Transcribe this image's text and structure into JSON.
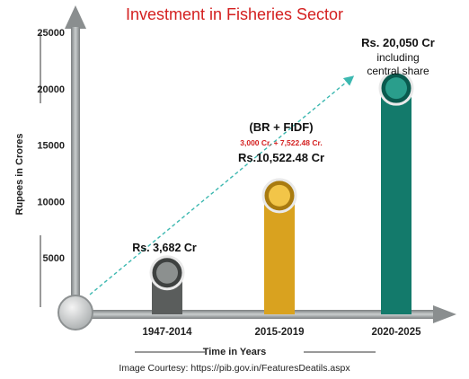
{
  "chart_data": {
    "type": "bar",
    "title": "Investment in Fisheries Sector",
    "ylabel": "Rupees in Crores",
    "xlabel": "Time in Years",
    "categories": [
      "1947-2014",
      "2015-2019",
      "2020-2025"
    ],
    "values": [
      3682,
      10522.48,
      20050
    ],
    "ylim": [
      0,
      25000
    ],
    "yticks": [
      5000,
      10000,
      15000,
      20000,
      25000
    ],
    "grid": false,
    "colors": [
      "#5a5d5c",
      "#d9a21f",
      "#137a6b"
    ],
    "annotations": {
      "bar1": "Rs. 3,682 Cr",
      "bar2_heading": "(BR + FIDF)",
      "bar2_detail": "3,000 Cr. + 7,522.48 Cr.",
      "bar2_value": "Rs.10,522.48 Cr",
      "bar3_value": "Rs. 20,050 Cr",
      "bar3_note_line1": "including",
      "bar3_note_line2": "central share"
    }
  },
  "footer": {
    "courtesy": "Image Courtesy: https://pib.gov.in/FeaturesDeatils.aspx"
  }
}
